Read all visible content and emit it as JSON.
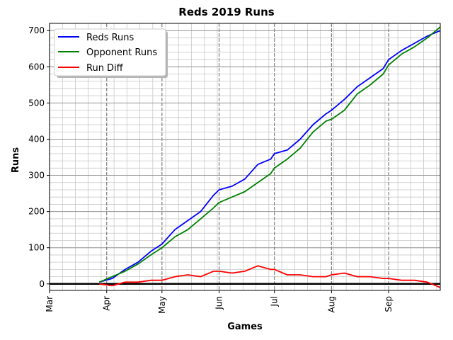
{
  "chart_data": {
    "type": "line",
    "title": "Reds 2019 Runs",
    "xlabel": "Games",
    "ylabel": "Runs",
    "x_tick_labels": [
      "Mar",
      "Apr",
      "May",
      "Jun",
      "Jul",
      "Aug",
      "Sep"
    ],
    "xlim": [
      "2019-03-01",
      "2019-09-29"
    ],
    "ylim": [
      -18,
      720
    ],
    "y_ticks": [
      0,
      100,
      200,
      300,
      400,
      500,
      600,
      700
    ],
    "grid": true,
    "legend_position": "upper-left",
    "x": [
      "2019-03-28",
      "2019-04-04",
      "2019-04-11",
      "2019-04-18",
      "2019-04-25",
      "2019-05-01",
      "2019-05-08",
      "2019-05-15",
      "2019-05-22",
      "2019-05-29",
      "2019-06-01",
      "2019-06-08",
      "2019-06-15",
      "2019-06-22",
      "2019-06-29",
      "2019-07-01",
      "2019-07-08",
      "2019-07-15",
      "2019-07-22",
      "2019-07-29",
      "2019-08-01",
      "2019-08-08",
      "2019-08-15",
      "2019-08-22",
      "2019-08-29",
      "2019-09-01",
      "2019-09-08",
      "2019-09-15",
      "2019-09-22",
      "2019-09-29"
    ],
    "series": [
      {
        "name": "Reds Runs",
        "color": "#0000ff",
        "values": [
          5,
          15,
          40,
          60,
          90,
          110,
          150,
          175,
          200,
          245,
          260,
          270,
          290,
          330,
          345,
          360,
          370,
          400,
          440,
          470,
          480,
          510,
          545,
          570,
          595,
          620,
          645,
          665,
          685,
          700
        ]
      },
      {
        "name": "Opponent Runs",
        "color": "#008000",
        "values": [
          5,
          20,
          35,
          55,
          80,
          100,
          130,
          150,
          180,
          210,
          225,
          240,
          255,
          280,
          305,
          320,
          345,
          375,
          420,
          450,
          455,
          480,
          525,
          550,
          580,
          605,
          635,
          655,
          680,
          710
        ]
      },
      {
        "name": "Run Diff",
        "color": "#ff0000",
        "values": [
          0,
          -5,
          5,
          5,
          10,
          10,
          20,
          25,
          20,
          35,
          35,
          30,
          35,
          50,
          40,
          40,
          25,
          25,
          20,
          20,
          25,
          30,
          20,
          20,
          15,
          15,
          10,
          10,
          5,
          -10
        ]
      }
    ],
    "zero_line_color": "#000000"
  }
}
